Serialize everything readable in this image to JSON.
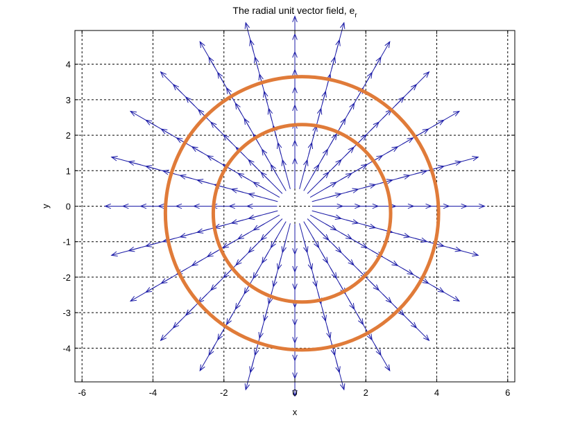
{
  "chart_data": {
    "type": "quiver",
    "title": "The radial unit vector field, e",
    "title_subscript": "r",
    "xlabel": "x",
    "ylabel": "y",
    "xlim": [
      -6.2,
      6.2
    ],
    "ylim": [
      -4.95,
      4.95
    ],
    "xticks": [
      -6,
      -4,
      -2,
      0,
      2,
      4,
      6
    ],
    "yticks": [
      4,
      3,
      2,
      1,
      0,
      -1,
      -2,
      -3,
      -4
    ],
    "xtick_labels": [
      "-6",
      "-4",
      "-2",
      "0",
      "2",
      "4",
      "6"
    ],
    "ytick_labels": [
      "4",
      "3",
      "2",
      "1",
      "0",
      "-1",
      "-2",
      "-3",
      "-4"
    ],
    "grid": true,
    "field": {
      "description_of_data": "unit radial vectors e_r along rays",
      "num_rays": 24,
      "radii": [
        0.5,
        1,
        1.5,
        2,
        2.5,
        3,
        3.5,
        4,
        4.5
      ],
      "arrow_length": 0.85,
      "color": "#1a1aa6"
    },
    "circles": [
      {
        "cx": 0.2,
        "cy": -0.2,
        "r": 2.5,
        "color": "#e07b39"
      },
      {
        "cx": 0.2,
        "cy": -0.2,
        "r": 3.85,
        "color": "#e07b39"
      }
    ]
  }
}
